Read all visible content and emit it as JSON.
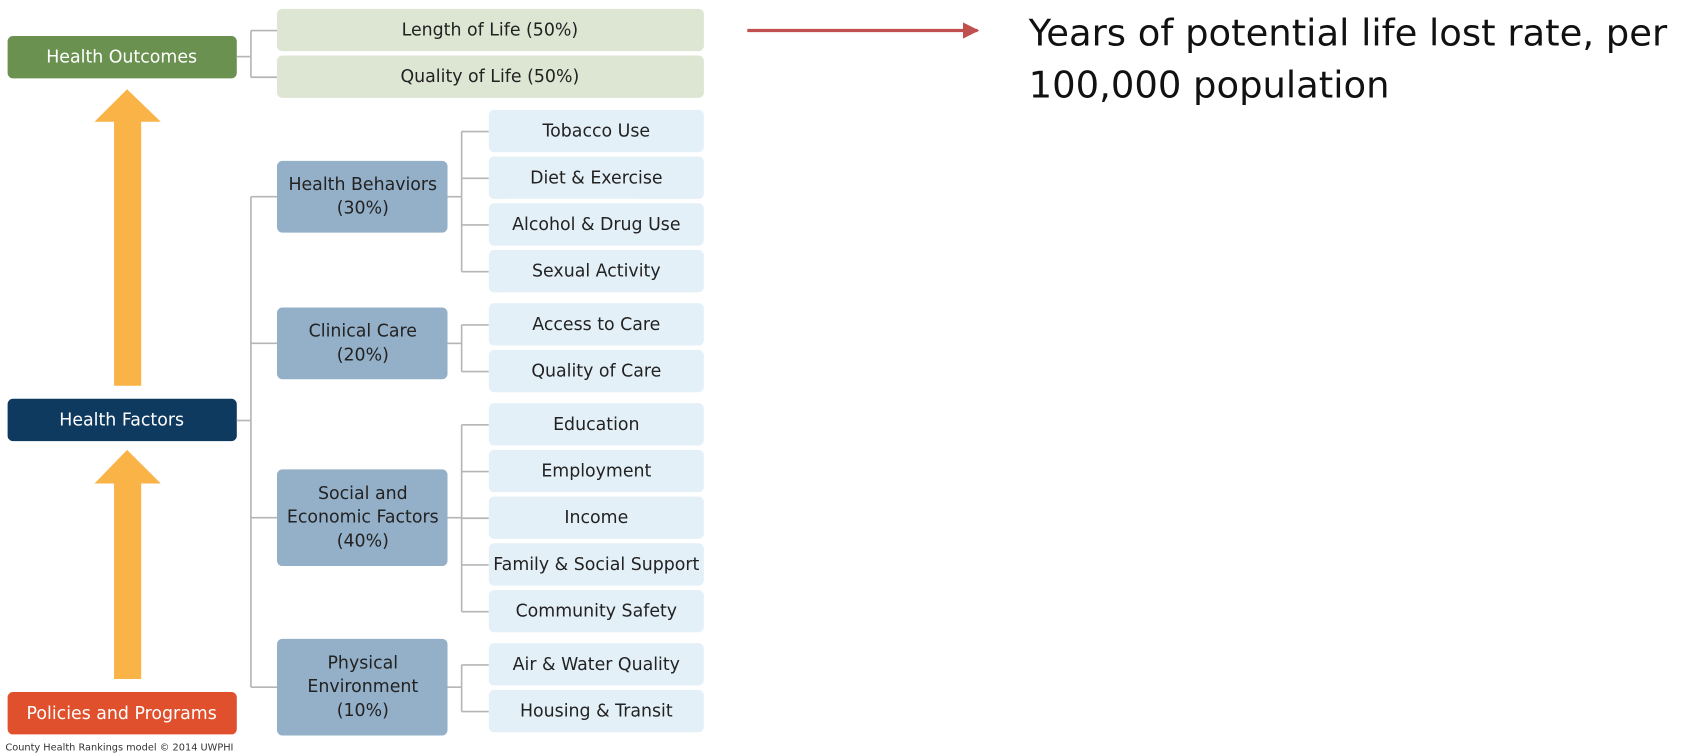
{
  "left_nodes": [
    {
      "label": "Health Outcomes"
    },
    {
      "label": "Health Factors"
    },
    {
      "label": "Policies and Programs"
    }
  ],
  "outcomes": [
    {
      "label": "Length of Life (50%)"
    },
    {
      "label": "Quality of Life (50%)"
    }
  ],
  "factor_groups": [
    {
      "label_lines": [
        "Health Behaviors",
        "(30%)"
      ],
      "items": [
        "Tobacco Use",
        "Diet & Exercise",
        "Alcohol & Drug Use",
        "Sexual Activity"
      ]
    },
    {
      "label_lines": [
        "Clinical Care",
        "(20%)"
      ],
      "items": [
        "Access to Care",
        "Quality of Care"
      ]
    },
    {
      "label_lines": [
        "Social and",
        "Economic Factors",
        "(40%)"
      ],
      "items": [
        "Education",
        "Employment",
        "Income",
        "Family & Social Support",
        "Community Safety"
      ]
    },
    {
      "label_lines": [
        "Physical",
        "Environment",
        "(10%)"
      ],
      "items": [
        "Air & Water Quality",
        "Housing & Transit"
      ]
    }
  ],
  "note": {
    "lines": [
      "Years of potential life lost rate, per",
      "100,000 population"
    ]
  },
  "footer": "County Health Rankings model © 2014 UWPHI"
}
